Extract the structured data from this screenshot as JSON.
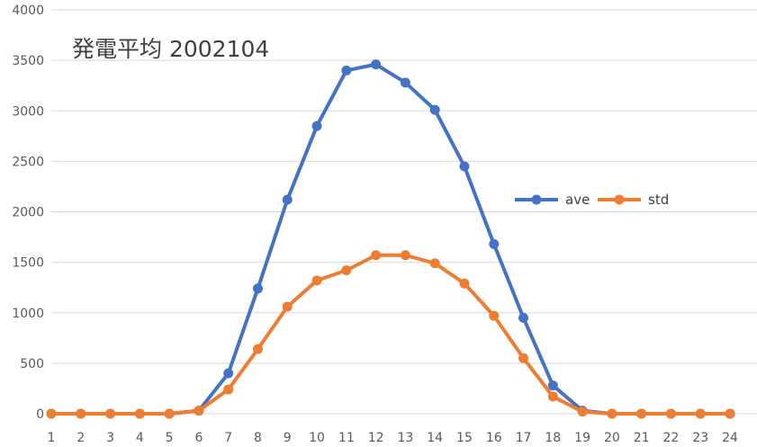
{
  "chart_data": {
    "type": "line",
    "title": "発電平均 2002104",
    "xlabel": "",
    "ylabel": "",
    "categories": [
      "1",
      "2",
      "3",
      "4",
      "5",
      "6",
      "7",
      "8",
      "9",
      "10",
      "11",
      "12",
      "13",
      "14",
      "15",
      "16",
      "17",
      "18",
      "19",
      "20",
      "21",
      "22",
      "23",
      "24"
    ],
    "ylim": [
      0,
      4000
    ],
    "yticks": [
      0,
      500,
      1000,
      1500,
      2000,
      2500,
      3000,
      3500,
      4000
    ],
    "grid": true,
    "legend_position": "right",
    "series": [
      {
        "name": "ave",
        "color": "#4472c4",
        "values": [
          0,
          0,
          0,
          0,
          0,
          30,
          400,
          1240,
          2120,
          2850,
          3400,
          3460,
          3280,
          3010,
          2450,
          1680,
          950,
          280,
          30,
          0,
          0,
          0,
          0,
          0
        ]
      },
      {
        "name": "std",
        "color": "#ed7d31",
        "values": [
          0,
          0,
          0,
          0,
          0,
          30,
          240,
          640,
          1060,
          1320,
          1420,
          1570,
          1570,
          1490,
          1290,
          970,
          550,
          170,
          20,
          0,
          0,
          0,
          0,
          0
        ]
      }
    ]
  }
}
